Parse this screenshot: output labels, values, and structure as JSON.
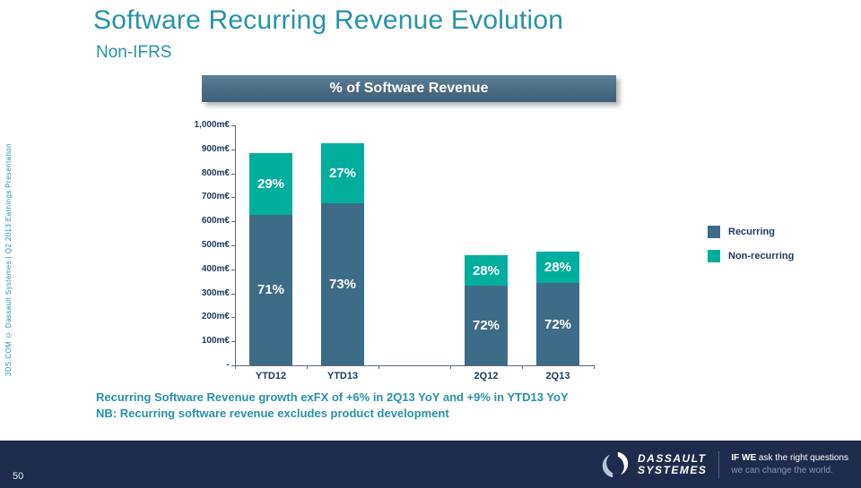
{
  "header": {
    "title": "Software Recurring Revenue Evolution",
    "subtitle": "Non-IFRS"
  },
  "sidebar": {
    "vertical_text": "3DS.COM © Dassault Systèmes | Q2 2013 Earnings Presentation"
  },
  "chart_data": {
    "type": "bar",
    "stacked": true,
    "title": "% of Software Revenue",
    "categories": [
      "YTD12",
      "YTD13",
      "2Q12",
      "2Q13"
    ],
    "series": [
      {
        "name": "Recurring",
        "color": "#3d6c88",
        "values_m_eur": [
          628,
          675,
          331,
          342
        ],
        "percent_labels": [
          "71%",
          "73%",
          "72%",
          "72%"
        ]
      },
      {
        "name": "Non-recurring",
        "color": "#00ae9e",
        "values_m_eur": [
          257,
          250,
          129,
          133
        ],
        "percent_labels": [
          "29%",
          "27%",
          "28%",
          "28%"
        ]
      }
    ],
    "bar_totals_m_eur": [
      885,
      925,
      460,
      475
    ],
    "ylim": [
      0,
      1000
    ],
    "y_unit": "m€",
    "ytick_labels": [
      "-",
      "100m€",
      "200m€",
      "300m€",
      "400m€",
      "500m€",
      "600m€",
      "700m€",
      "800m€",
      "900m€",
      "1,000m€"
    ],
    "legend_position": "right",
    "gridlines": false
  },
  "notes": {
    "line1": "Recurring Software Revenue growth exFX of +6% in 2Q13 YoY and +9% in YTD13 YoY",
    "line2": "NB: Recurring software revenue excludes product development"
  },
  "footer": {
    "page_number": "50",
    "brand_name_line1": "DASSAULT",
    "brand_name_line2": "SYSTEMES",
    "tagline_bold": "IF WE",
    "tagline_rest": " ask the right questions",
    "tagline_line2": "we can change the world."
  },
  "colors": {
    "accent_teal": "#2792aa",
    "recurring": "#3d6c88",
    "non_recurring": "#00ae9e",
    "banner": "#4a6c82",
    "footer_navy": "#1e2b4c",
    "axis_text": "#1f3a60"
  }
}
